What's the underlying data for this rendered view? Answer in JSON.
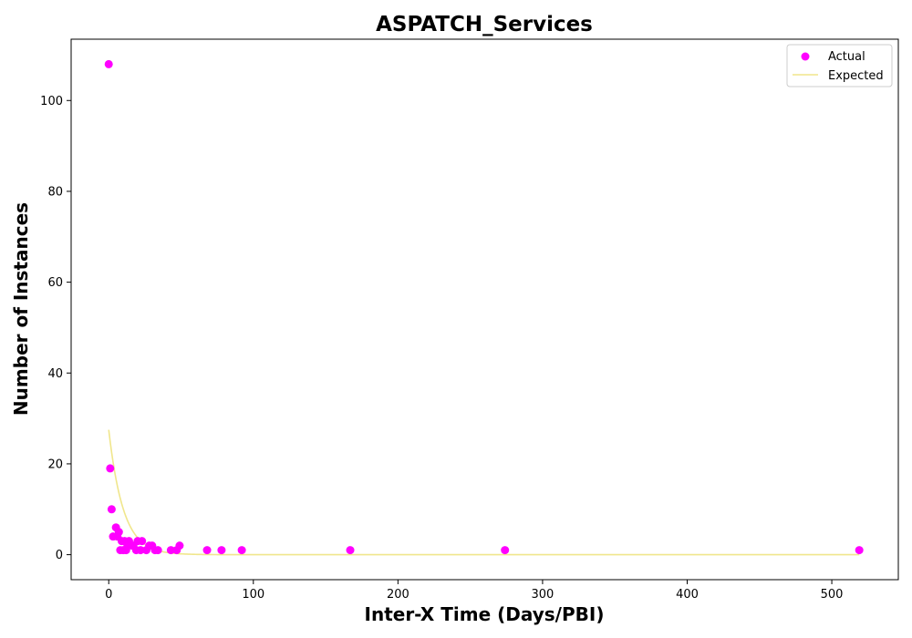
{
  "chart_data": {
    "type": "scatter",
    "title": "ASPATCH_Services",
    "xlabel": "Inter-X Time (Days/PBI)",
    "ylabel": "Number of Instances",
    "xlim": [
      -26,
      546
    ],
    "ylim": [
      -5.5,
      113.5
    ],
    "xticks": [
      0,
      100,
      200,
      300,
      400,
      500
    ],
    "yticks": [
      0,
      20,
      40,
      60,
      80,
      100
    ],
    "grid": false,
    "legend_position": "top-right",
    "series": [
      {
        "name": "Actual",
        "kind": "scatter",
        "color": "#ff00ff",
        "points": [
          [
            0,
            108
          ],
          [
            1,
            19
          ],
          [
            2,
            10
          ],
          [
            3,
            4
          ],
          [
            5,
            6
          ],
          [
            6,
            4
          ],
          [
            7,
            5
          ],
          [
            8,
            1
          ],
          [
            9,
            3
          ],
          [
            10,
            1
          ],
          [
            11,
            3
          ],
          [
            12,
            1
          ],
          [
            13,
            2
          ],
          [
            14,
            3
          ],
          [
            16,
            2
          ],
          [
            17,
            2
          ],
          [
            19,
            1
          ],
          [
            20,
            3
          ],
          [
            22,
            1
          ],
          [
            23,
            3
          ],
          [
            26,
            1
          ],
          [
            28,
            2
          ],
          [
            30,
            2
          ],
          [
            32,
            1
          ],
          [
            34,
            1
          ],
          [
            43,
            1
          ],
          [
            47,
            1
          ],
          [
            49,
            2
          ],
          [
            68,
            1
          ],
          [
            78,
            1
          ],
          [
            92,
            1
          ],
          [
            167,
            1
          ],
          [
            274,
            1
          ],
          [
            519,
            1
          ]
        ]
      },
      {
        "name": "Expected",
        "kind": "line",
        "color": "#f0e68c",
        "curve": {
          "form": "exponential",
          "a": 27.5,
          "k": 0.1
        }
      }
    ]
  }
}
